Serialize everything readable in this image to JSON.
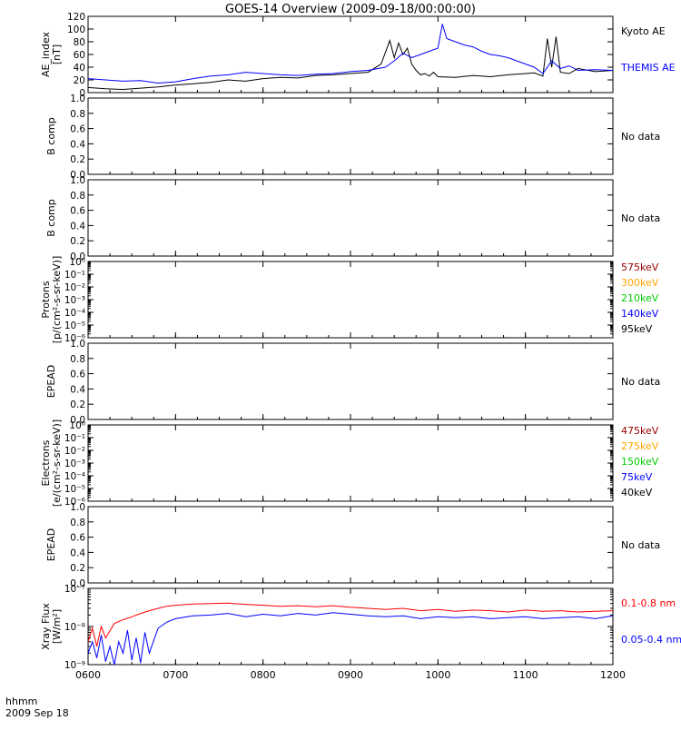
{
  "title": "GOES-14 Overview (2009-09-18/00:00:00)",
  "footer": {
    "label_line1": "hhmm",
    "label_line2": "2009 Sep 18",
    "x_ticks": [
      "0600",
      "0700",
      "0800",
      "0900",
      "1000",
      "1100",
      "1200"
    ]
  },
  "chart_data": [
    {
      "type": "line",
      "ylabel": [
        "AE_index",
        "[nT]"
      ],
      "ylim": [
        0,
        120
      ],
      "yticks": [
        "0",
        "20",
        "40",
        "60",
        "80",
        "100",
        "120"
      ],
      "xlim": [
        6.0,
        12.0
      ],
      "series": [
        {
          "name": "Kyoto AE",
          "color": "#000000",
          "x": [
            6.0,
            6.2,
            6.4,
            6.6,
            6.8,
            7.0,
            7.2,
            7.4,
            7.6,
            7.8,
            8.0,
            8.2,
            8.4,
            8.6,
            8.8,
            9.0,
            9.2,
            9.35,
            9.45,
            9.5,
            9.55,
            9.6,
            9.65,
            9.7,
            9.75,
            9.8,
            9.85,
            9.9,
            9.95,
            10.0,
            10.2,
            10.4,
            10.6,
            10.8,
            11.0,
            11.1,
            11.2,
            11.25,
            11.3,
            11.35,
            11.4,
            11.5,
            11.6,
            11.8,
            12.0
          ],
          "values": [
            8,
            6,
            5,
            7,
            9,
            12,
            14,
            16,
            20,
            18,
            22,
            24,
            23,
            27,
            28,
            30,
            32,
            45,
            82,
            55,
            78,
            60,
            70,
            45,
            35,
            28,
            30,
            26,
            32,
            25,
            24,
            27,
            25,
            28,
            30,
            31,
            26,
            85,
            40,
            88,
            32,
            30,
            38,
            33,
            35
          ]
        },
        {
          "name": "THEMIS AE",
          "color": "#0000ff",
          "x": [
            6.0,
            6.2,
            6.4,
            6.6,
            6.8,
            7.0,
            7.2,
            7.4,
            7.6,
            7.8,
            8.0,
            8.2,
            8.4,
            8.6,
            8.8,
            9.0,
            9.2,
            9.4,
            9.5,
            9.6,
            9.7,
            9.8,
            9.9,
            10.0,
            10.05,
            10.1,
            10.2,
            10.3,
            10.4,
            10.5,
            10.6,
            10.7,
            10.8,
            10.9,
            11.0,
            11.1,
            11.2,
            11.3,
            11.4,
            11.5,
            11.6,
            11.8,
            12.0
          ],
          "values": [
            22,
            20,
            18,
            19,
            15,
            17,
            22,
            26,
            28,
            32,
            30,
            28,
            27,
            29,
            30,
            33,
            35,
            40,
            50,
            62,
            55,
            60,
            65,
            70,
            108,
            85,
            80,
            75,
            72,
            65,
            60,
            58,
            55,
            50,
            45,
            40,
            30,
            50,
            38,
            42,
            35,
            36,
            35
          ]
        }
      ]
    },
    {
      "type": "line",
      "ylabel": [
        "B comp"
      ],
      "ylim": [
        0,
        1
      ],
      "yticks": [
        "0.0",
        "0.2",
        "0.4",
        "0.6",
        "0.8",
        "1.0"
      ],
      "note": "No data",
      "series": []
    },
    {
      "type": "line",
      "ylabel": [
        "B comp"
      ],
      "ylim": [
        0,
        1
      ],
      "yticks": [
        "0.0",
        "0.2",
        "0.4",
        "0.6",
        "0.8",
        "1.0"
      ],
      "note": "No data",
      "series": []
    },
    {
      "type": "line",
      "ylabel": [
        "Protons",
        "[p/(cm²-s-sr-keV)]"
      ],
      "yscale": "log",
      "ylim": [
        1e-06,
        1
      ],
      "yticks": [
        "10⁻⁶",
        "10⁻⁵",
        "10⁻⁴",
        "10⁻³",
        "10⁻²",
        "10⁻¹",
        "10⁰"
      ],
      "legend": [
        {
          "name": "575keV",
          "color": "#990000"
        },
        {
          "name": "300keV",
          "color": "#ffa500"
        },
        {
          "name": "210keV",
          "color": "#00cc00"
        },
        {
          "name": "140keV",
          "color": "#0000ff"
        },
        {
          "name": "95keV",
          "color": "#000000"
        }
      ],
      "series": []
    },
    {
      "type": "line",
      "ylabel": [
        "EPEAD"
      ],
      "ylim": [
        0,
        1
      ],
      "yticks": [
        "0.0",
        "0.2",
        "0.4",
        "0.6",
        "0.8",
        "1.0"
      ],
      "note": "No data",
      "series": []
    },
    {
      "type": "line",
      "ylabel": [
        "Electrons",
        "[e/(cm²-s-sr-keV)]"
      ],
      "yscale": "log",
      "ylim": [
        1e-06,
        1
      ],
      "yticks": [
        "10⁻⁶",
        "10⁻⁵",
        "10⁻⁴",
        "10⁻³",
        "10⁻²",
        "10⁻¹",
        "10⁰"
      ],
      "legend": [
        {
          "name": "475keV",
          "color": "#990000"
        },
        {
          "name": "275keV",
          "color": "#ffa500"
        },
        {
          "name": "150keV",
          "color": "#00cc00"
        },
        {
          "name": "75keV",
          "color": "#0000ff"
        },
        {
          "name": "40keV",
          "color": "#000000"
        }
      ],
      "series": []
    },
    {
      "type": "line",
      "ylabel": [
        "EPEAD"
      ],
      "ylim": [
        0,
        1
      ],
      "yticks": [
        "0.0",
        "0.2",
        "0.4",
        "0.6",
        "0.8",
        "1.0"
      ],
      "note": "No data",
      "series": []
    },
    {
      "type": "line",
      "ylabel": [
        "Xray Flux",
        "[W/m²]"
      ],
      "yscale": "log",
      "ylim": [
        1e-09,
        1e-07
      ],
      "yticks": [
        "10⁻⁹",
        "10⁻⁸",
        "10⁻⁷"
      ],
      "xlim": [
        6.0,
        12.0
      ],
      "series": [
        {
          "name": "0.1-0.8 nm",
          "color": "#ff0000",
          "x": [
            6.0,
            6.05,
            6.1,
            6.15,
            6.2,
            6.3,
            6.4,
            6.5,
            6.6,
            6.7,
            6.8,
            6.9,
            7.0,
            7.2,
            7.4,
            7.6,
            7.8,
            8.0,
            8.2,
            8.4,
            8.6,
            8.8,
            9.0,
            9.2,
            9.4,
            9.6,
            9.8,
            10.0,
            10.2,
            10.4,
            10.6,
            10.8,
            11.0,
            11.2,
            11.4,
            11.6,
            11.8,
            12.0
          ],
          "values": [
            4e-09,
            9e-09,
            3e-09,
            1e-08,
            5e-09,
            1.2e-08,
            1.5e-08,
            1.8e-08,
            2.2e-08,
            2.6e-08,
            3e-08,
            3.4e-08,
            3.6e-08,
            3.9e-08,
            4e-08,
            4.1e-08,
            3.8e-08,
            3.6e-08,
            3.4e-08,
            3.5e-08,
            3.3e-08,
            3.5e-08,
            3.2e-08,
            3e-08,
            2.8e-08,
            3e-08,
            2.6e-08,
            2.8e-08,
            2.5e-08,
            2.7e-08,
            2.6e-08,
            2.4e-08,
            2.7e-08,
            2.5e-08,
            2.6e-08,
            2.4e-08,
            2.5e-08,
            2.6e-08
          ]
        },
        {
          "name": "0.05-0.4 nm",
          "color": "#0000ff",
          "x": [
            6.0,
            6.05,
            6.1,
            6.15,
            6.2,
            6.25,
            6.3,
            6.35,
            6.4,
            6.45,
            6.5,
            6.55,
            6.6,
            6.65,
            6.7,
            6.8,
            6.9,
            7.0,
            7.2,
            7.4,
            7.6,
            7.8,
            8.0,
            8.2,
            8.4,
            8.6,
            8.8,
            9.0,
            9.2,
            9.4,
            9.6,
            9.8,
            10.0,
            10.2,
            10.4,
            10.6,
            10.8,
            11.0,
            11.2,
            11.4,
            11.6,
            11.8,
            12.0
          ],
          "values": [
            2e-09,
            4e-09,
            1.5e-09,
            6e-09,
            1.2e-09,
            3e-09,
            1e-09,
            4e-09,
            2e-09,
            8e-09,
            1.3e-09,
            5e-09,
            1.1e-09,
            7e-09,
            2e-09,
            9e-09,
            1.3e-08,
            1.6e-08,
            1.9e-08,
            2e-08,
            2.2e-08,
            1.8e-08,
            2.1e-08,
            1.9e-08,
            2.2e-08,
            2e-08,
            2.3e-08,
            2.1e-08,
            1.9e-08,
            1.8e-08,
            1.9e-08,
            1.6e-08,
            1.8e-08,
            1.7e-08,
            1.8e-08,
            1.6e-08,
            1.7e-08,
            1.8e-08,
            1.6e-08,
            1.7e-08,
            1.8e-08,
            1.6e-08,
            1.9e-08
          ]
        }
      ]
    }
  ]
}
